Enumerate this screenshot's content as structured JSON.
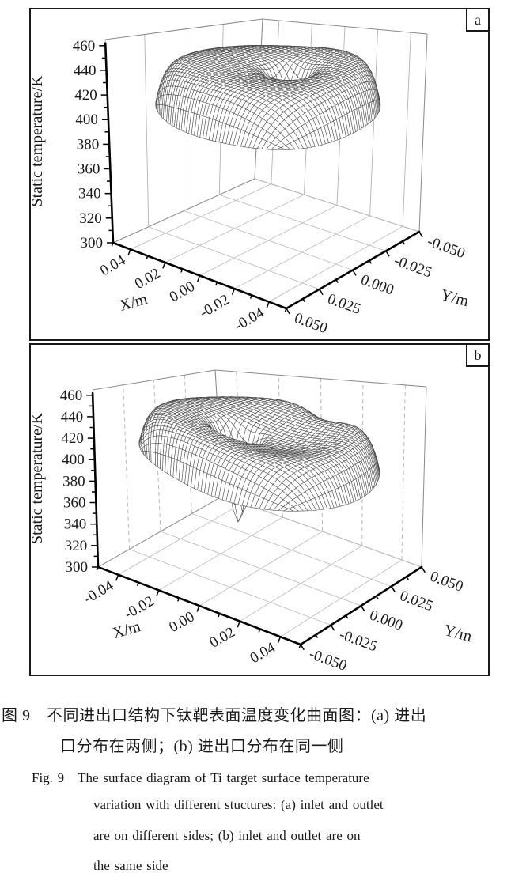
{
  "figure": {
    "panels": [
      {
        "label": "a"
      },
      {
        "label": "b"
      }
    ],
    "caption_zh": [
      "图 9　不同进出口结构下钛靶表面温度变化曲面图：(a) 进出",
      "口分布在两侧；(b) 进出口分布在同一侧"
    ],
    "caption_en": [
      "Fig. 9　The surface diagram of Ti target surface temperature",
      "variation with different stuctures: (a) inlet and outlet",
      "are on different sides; (b) inlet and outlet are on",
      "the same side"
    ]
  },
  "chart_data": [
    {
      "type": "surface3d_wireframe",
      "panel": "a",
      "zlabel": "Static temperature/K",
      "xlabel": "X/m",
      "ylabel": "Y/m",
      "zlim": [
        300,
        460
      ],
      "z_ticks": [
        300,
        320,
        340,
        360,
        380,
        400,
        420,
        440,
        460
      ],
      "x_ticks_display": [
        "0.04",
        "0.02",
        "0.00",
        "-0.02",
        "-0.04"
      ],
      "x_tick_values": [
        0.04,
        0.02,
        0,
        -0.02,
        -0.04
      ],
      "y_ticks_display": [
        "0.050",
        "0.025",
        "0.000",
        "-0.025",
        "-0.050"
      ],
      "y_tick_values": [
        0.05,
        0.025,
        0,
        -0.025,
        -0.05
      ],
      "domain": {
        "shape": "disk",
        "radius_m": 0.05
      },
      "axis_flip": {
        "x": -1,
        "y": -1
      },
      "surface_model": {
        "base_K": 450,
        "dome_K": 6,
        "dome_sigma_m": 0.03,
        "rim_drop_K": 38,
        "rim_power": 12,
        "tilt_x_K": 0,
        "ripple_K": 1.0,
        "wells": [
          {
            "x_m": -0.007,
            "y_m": -0.005,
            "sigma_m": 0.0048,
            "depth_K": 62
          },
          {
            "x_m": -0.004,
            "y_m": -0.003,
            "sigma_m": 0.016,
            "depth_K": 9
          }
        ]
      },
      "summary": "Plateau ~450-456 K over most of disk, rim drops to ~412-418 K at edges, narrow inlet funnel dips to ~383 K near center"
    },
    {
      "type": "surface3d_wireframe",
      "panel": "b",
      "zlabel": "Static temperature/K",
      "xlabel": "X/m",
      "ylabel": "Y/m",
      "zlim": [
        300,
        460
      ],
      "z_ticks": [
        300,
        320,
        340,
        360,
        380,
        400,
        420,
        440,
        460
      ],
      "x_ticks_display": [
        "-0.04",
        "-0.02",
        "0.00",
        "0.02",
        "0.04"
      ],
      "x_tick_values": [
        -0.04,
        -0.02,
        0,
        0.02,
        0.04
      ],
      "y_ticks_display": [
        "-0.050",
        "-0.025",
        "0.000",
        "0.025",
        "0.050"
      ],
      "y_tick_values": [
        -0.05,
        -0.025,
        0,
        0.025,
        0.05
      ],
      "domain": {
        "shape": "disk",
        "radius_m": 0.05
      },
      "axis_flip": {
        "x": 1,
        "y": 1
      },
      "surface_model": {
        "base_K": 446,
        "dome_K": 4,
        "dome_sigma_m": 0.03,
        "rim_drop_K": 40,
        "rim_power": 12,
        "tilt_x_K": -5,
        "ripple_K": 1.0,
        "wells": [
          {
            "x_m": -0.007,
            "y_m": -0.006,
            "sigma_m": 0.0045,
            "depth_K": 92
          },
          {
            "x_m": 0.01,
            "y_m": 0,
            "sigma_m": 0.02,
            "depth_K": 20
          },
          {
            "x_m": 0.012,
            "y_m": 0.048,
            "sigma_m": 0.01,
            "depth_K": 20
          }
        ]
      },
      "summary": "Back plateau ~450 K sloping down toward front ~425-435 K, rim drops to ~390-410 K, deep inlet funnel dips to ~340 K near center"
    }
  ]
}
